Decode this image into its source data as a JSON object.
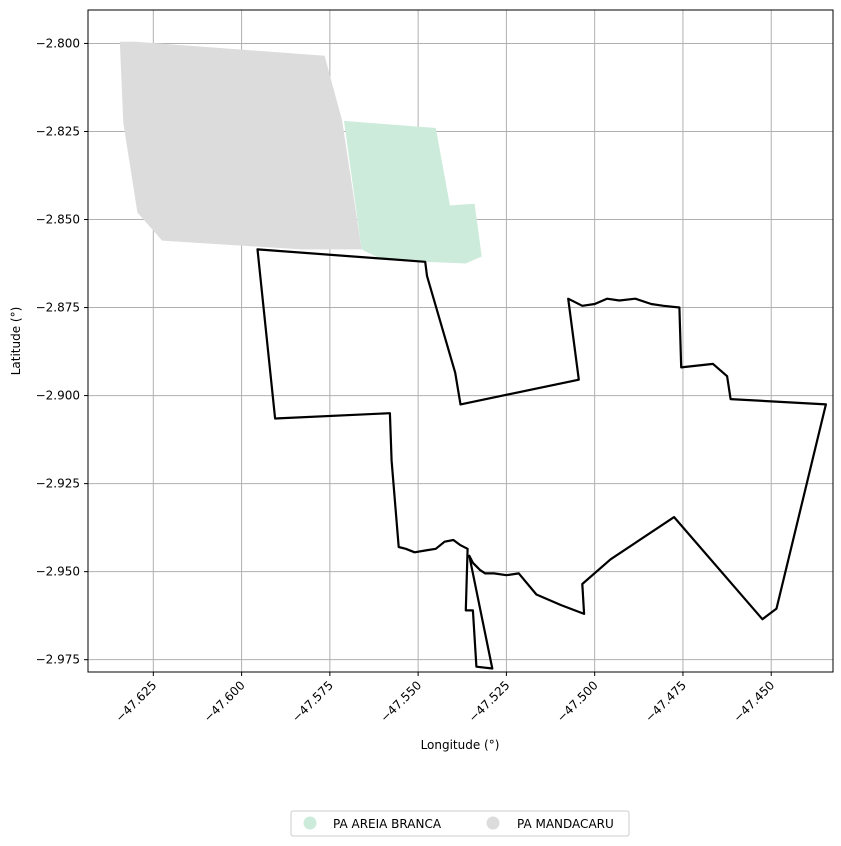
{
  "chart_data": {
    "type": "map",
    "xlabel": "Longitude (°)",
    "ylabel": "Latitude (°)",
    "xlim": [
      -47.6435,
      -47.4325
    ],
    "ylim": [
      -2.9785,
      -2.7905
    ],
    "grid": true,
    "x_ticks": [
      -47.625,
      -47.6,
      -47.575,
      -47.55,
      -47.525,
      -47.5,
      -47.475,
      -47.45
    ],
    "x_tick_labels": [
      "−47.625",
      "−47.600",
      "−47.575",
      "−47.550",
      "−47.525",
      "−47.500",
      "−47.475",
      "−47.450"
    ],
    "y_ticks": [
      -2.8,
      -2.825,
      -2.85,
      -2.875,
      -2.9,
      -2.925,
      -2.95,
      -2.975
    ],
    "y_tick_labels": [
      "−2.800",
      "−2.825",
      "−2.850",
      "−2.875",
      "−2.900",
      "−2.925",
      "−2.950",
      "−2.975"
    ],
    "legend_position": "bottom-center",
    "layers": [
      {
        "name": "PA AREIA BRANCA",
        "color": "#cdebdb",
        "coords": [
          [
            -47.571,
            -2.822
          ],
          [
            -47.545,
            -2.824
          ],
          [
            -47.541,
            -2.846
          ],
          [
            -47.534,
            -2.8455
          ],
          [
            -47.533,
            -2.853
          ],
          [
            -47.532,
            -2.8605
          ],
          [
            -47.5365,
            -2.8625
          ],
          [
            -47.56,
            -2.8615
          ],
          [
            -47.566,
            -2.8585
          ],
          [
            -47.571,
            -2.822
          ]
        ]
      },
      {
        "name": "PA MANDACARU",
        "color": "#dcdcdc",
        "coords": [
          [
            -47.6345,
            -2.7995
          ],
          [
            -47.63,
            -2.7995
          ],
          [
            -47.5765,
            -2.8035
          ],
          [
            -47.5715,
            -2.822
          ],
          [
            -47.566,
            -2.8585
          ],
          [
            -47.583,
            -2.8585
          ],
          [
            -47.6225,
            -2.856
          ],
          [
            -47.6295,
            -2.848
          ],
          [
            -47.6335,
            -2.8225
          ],
          [
            -47.6345,
            -2.7995
          ]
        ]
      }
    ],
    "boundary": {
      "color": "#000000",
      "coords": [
        [
          -47.5955,
          -2.8585
        ],
        [
          -47.548,
          -2.862
        ],
        [
          -47.5475,
          -2.866
        ],
        [
          -47.5395,
          -2.8935
        ],
        [
          -47.538,
          -2.9025
        ],
        [
          -47.5045,
          -2.8955
        ],
        [
          -47.5075,
          -2.8725
        ],
        [
          -47.5035,
          -2.8745
        ],
        [
          -47.5,
          -2.874
        ],
        [
          -47.4965,
          -2.8725
        ],
        [
          -47.493,
          -2.873
        ],
        [
          -47.4885,
          -2.8725
        ],
        [
          -47.484,
          -2.874
        ],
        [
          -47.4805,
          -2.8745
        ],
        [
          -47.476,
          -2.875
        ],
        [
          -47.4755,
          -2.892
        ],
        [
          -47.4665,
          -2.891
        ],
        [
          -47.4625,
          -2.8945
        ],
        [
          -47.4615,
          -2.901
        ],
        [
          -47.4345,
          -2.9025
        ],
        [
          -47.4485,
          -2.9605
        ],
        [
          -47.4525,
          -2.9635
        ],
        [
          -47.4775,
          -2.9345
        ],
        [
          -47.4955,
          -2.9465
        ],
        [
          -47.5035,
          -2.9535
        ],
        [
          -47.503,
          -2.962
        ],
        [
          -47.5095,
          -2.9595
        ],
        [
          -47.5165,
          -2.9565
        ],
        [
          -47.5215,
          -2.9505
        ],
        [
          -47.525,
          -2.951
        ],
        [
          -47.5285,
          -2.9505
        ],
        [
          -47.531,
          -2.9505
        ],
        [
          -47.5325,
          -2.9495
        ],
        [
          -47.5345,
          -2.9475
        ],
        [
          -47.5355,
          -2.9455
        ],
        [
          -47.529,
          -2.9775
        ],
        [
          -47.5335,
          -2.977
        ],
        [
          -47.5345,
          -2.961
        ],
        [
          -47.5365,
          -2.961
        ],
        [
          -47.536,
          -2.9435
        ],
        [
          -47.538,
          -2.9425
        ],
        [
          -47.54,
          -2.941
        ],
        [
          -47.5425,
          -2.9415
        ],
        [
          -47.545,
          -2.9435
        ],
        [
          -47.548,
          -2.944
        ],
        [
          -47.551,
          -2.9445
        ],
        [
          -47.5535,
          -2.9435
        ],
        [
          -47.5555,
          -2.943
        ],
        [
          -47.5575,
          -2.9185
        ],
        [
          -47.558,
          -2.905
        ],
        [
          -47.5905,
          -2.9065
        ],
        [
          -47.5955,
          -2.8585
        ]
      ]
    }
  }
}
